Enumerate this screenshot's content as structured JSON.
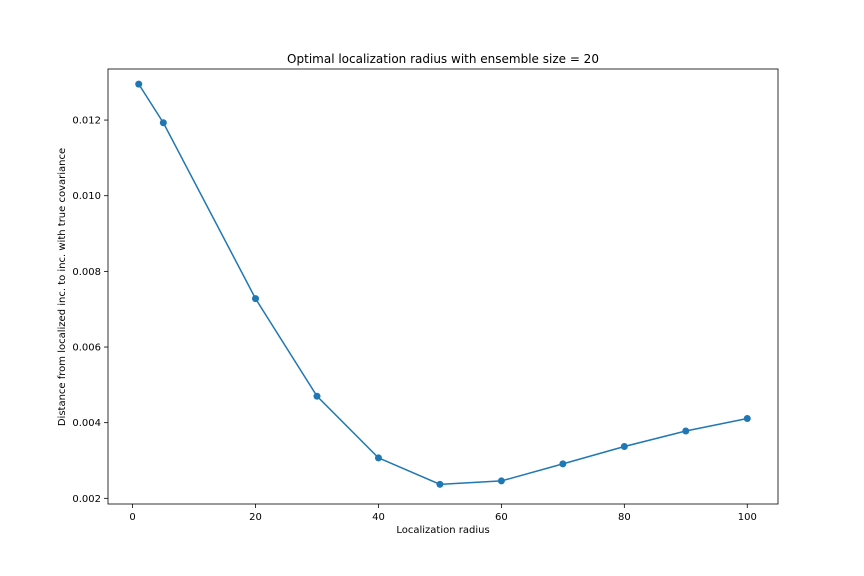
{
  "chart_data": {
    "type": "line",
    "title": "Optimal localization radius with ensemble size = 20",
    "xlabel": "Localization radius",
    "ylabel": "Distance from localized inc. to inc. with true covariance",
    "xlim": [
      -4,
      105
    ],
    "ylim": [
      0.00185,
      0.01335
    ],
    "xticks": [
      0,
      20,
      40,
      60,
      80,
      100
    ],
    "yticks": [
      0.002,
      0.004,
      0.006,
      0.008,
      0.01,
      0.012
    ],
    "xtick_labels": [
      "0",
      "20",
      "40",
      "60",
      "80",
      "100"
    ],
    "ytick_labels": [
      "0.002",
      "0.004",
      "0.006",
      "0.008",
      "0.010",
      "0.012"
    ],
    "grid": false,
    "series": [
      {
        "color": "#1f77b4",
        "marker": "circle",
        "x": [
          1,
          5,
          20,
          30,
          40,
          50,
          60,
          70,
          80,
          90,
          100
        ],
        "y": [
          0.01295,
          0.01193,
          0.00728,
          0.0047,
          0.00307,
          0.00237,
          0.00246,
          0.00291,
          0.00337,
          0.00378,
          0.00411
        ]
      }
    ]
  }
}
